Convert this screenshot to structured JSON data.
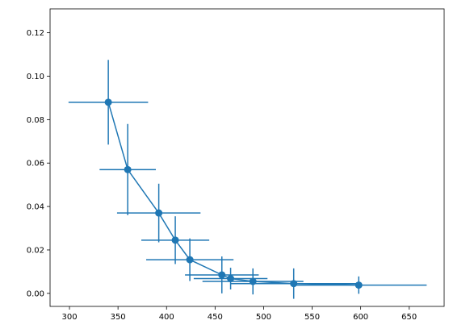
{
  "chart_data": {
    "type": "scatter",
    "title": "",
    "xlabel": "",
    "ylabel": "",
    "xlim": [
      280,
      686
    ],
    "ylim": [
      -0.006,
      0.131
    ],
    "grid": false,
    "legend": "none",
    "color": "#1f77b4",
    "x_ticks": [
      300,
      350,
      400,
      450,
      500,
      550,
      600,
      650
    ],
    "x_tick_labels": [
      "300",
      "350",
      "400",
      "450",
      "500",
      "550",
      "600",
      "650"
    ],
    "y_ticks": [
      0.0,
      0.02,
      0.04,
      0.06,
      0.08,
      0.1,
      0.12
    ],
    "y_tick_labels": [
      "0.00",
      "0.02",
      "0.04",
      "0.06",
      "0.08",
      "0.10",
      "0.12"
    ],
    "series": [
      {
        "marker": "circle",
        "line": "solid",
        "points": [
          {
            "x": 340,
            "y": 0.088,
            "xerr": 41,
            "yerr": 0.0195
          },
          {
            "x": 360,
            "y": 0.057,
            "xerr": 29,
            "yerr": 0.021
          },
          {
            "x": 392,
            "y": 0.037,
            "xerr": 43,
            "yerr": 0.0135
          },
          {
            "x": 409,
            "y": 0.0245,
            "xerr": 35,
            "yerr": 0.011
          },
          {
            "x": 424,
            "y": 0.0155,
            "xerr": 45,
            "yerr": 0.0098
          },
          {
            "x": 457,
            "y": 0.0085,
            "xerr": 38,
            "yerr": 0.0085
          },
          {
            "x": 466,
            "y": 0.0068,
            "xerr": 38,
            "yerr": 0.005
          },
          {
            "x": 489,
            "y": 0.0055,
            "xerr": 52,
            "yerr": 0.006
          },
          {
            "x": 531,
            "y": 0.0045,
            "xerr": 65,
            "yerr": 0.007
          },
          {
            "x": 598,
            "y": 0.0038,
            "xerr": 70,
            "yerr": 0.004
          }
        ]
      }
    ]
  }
}
